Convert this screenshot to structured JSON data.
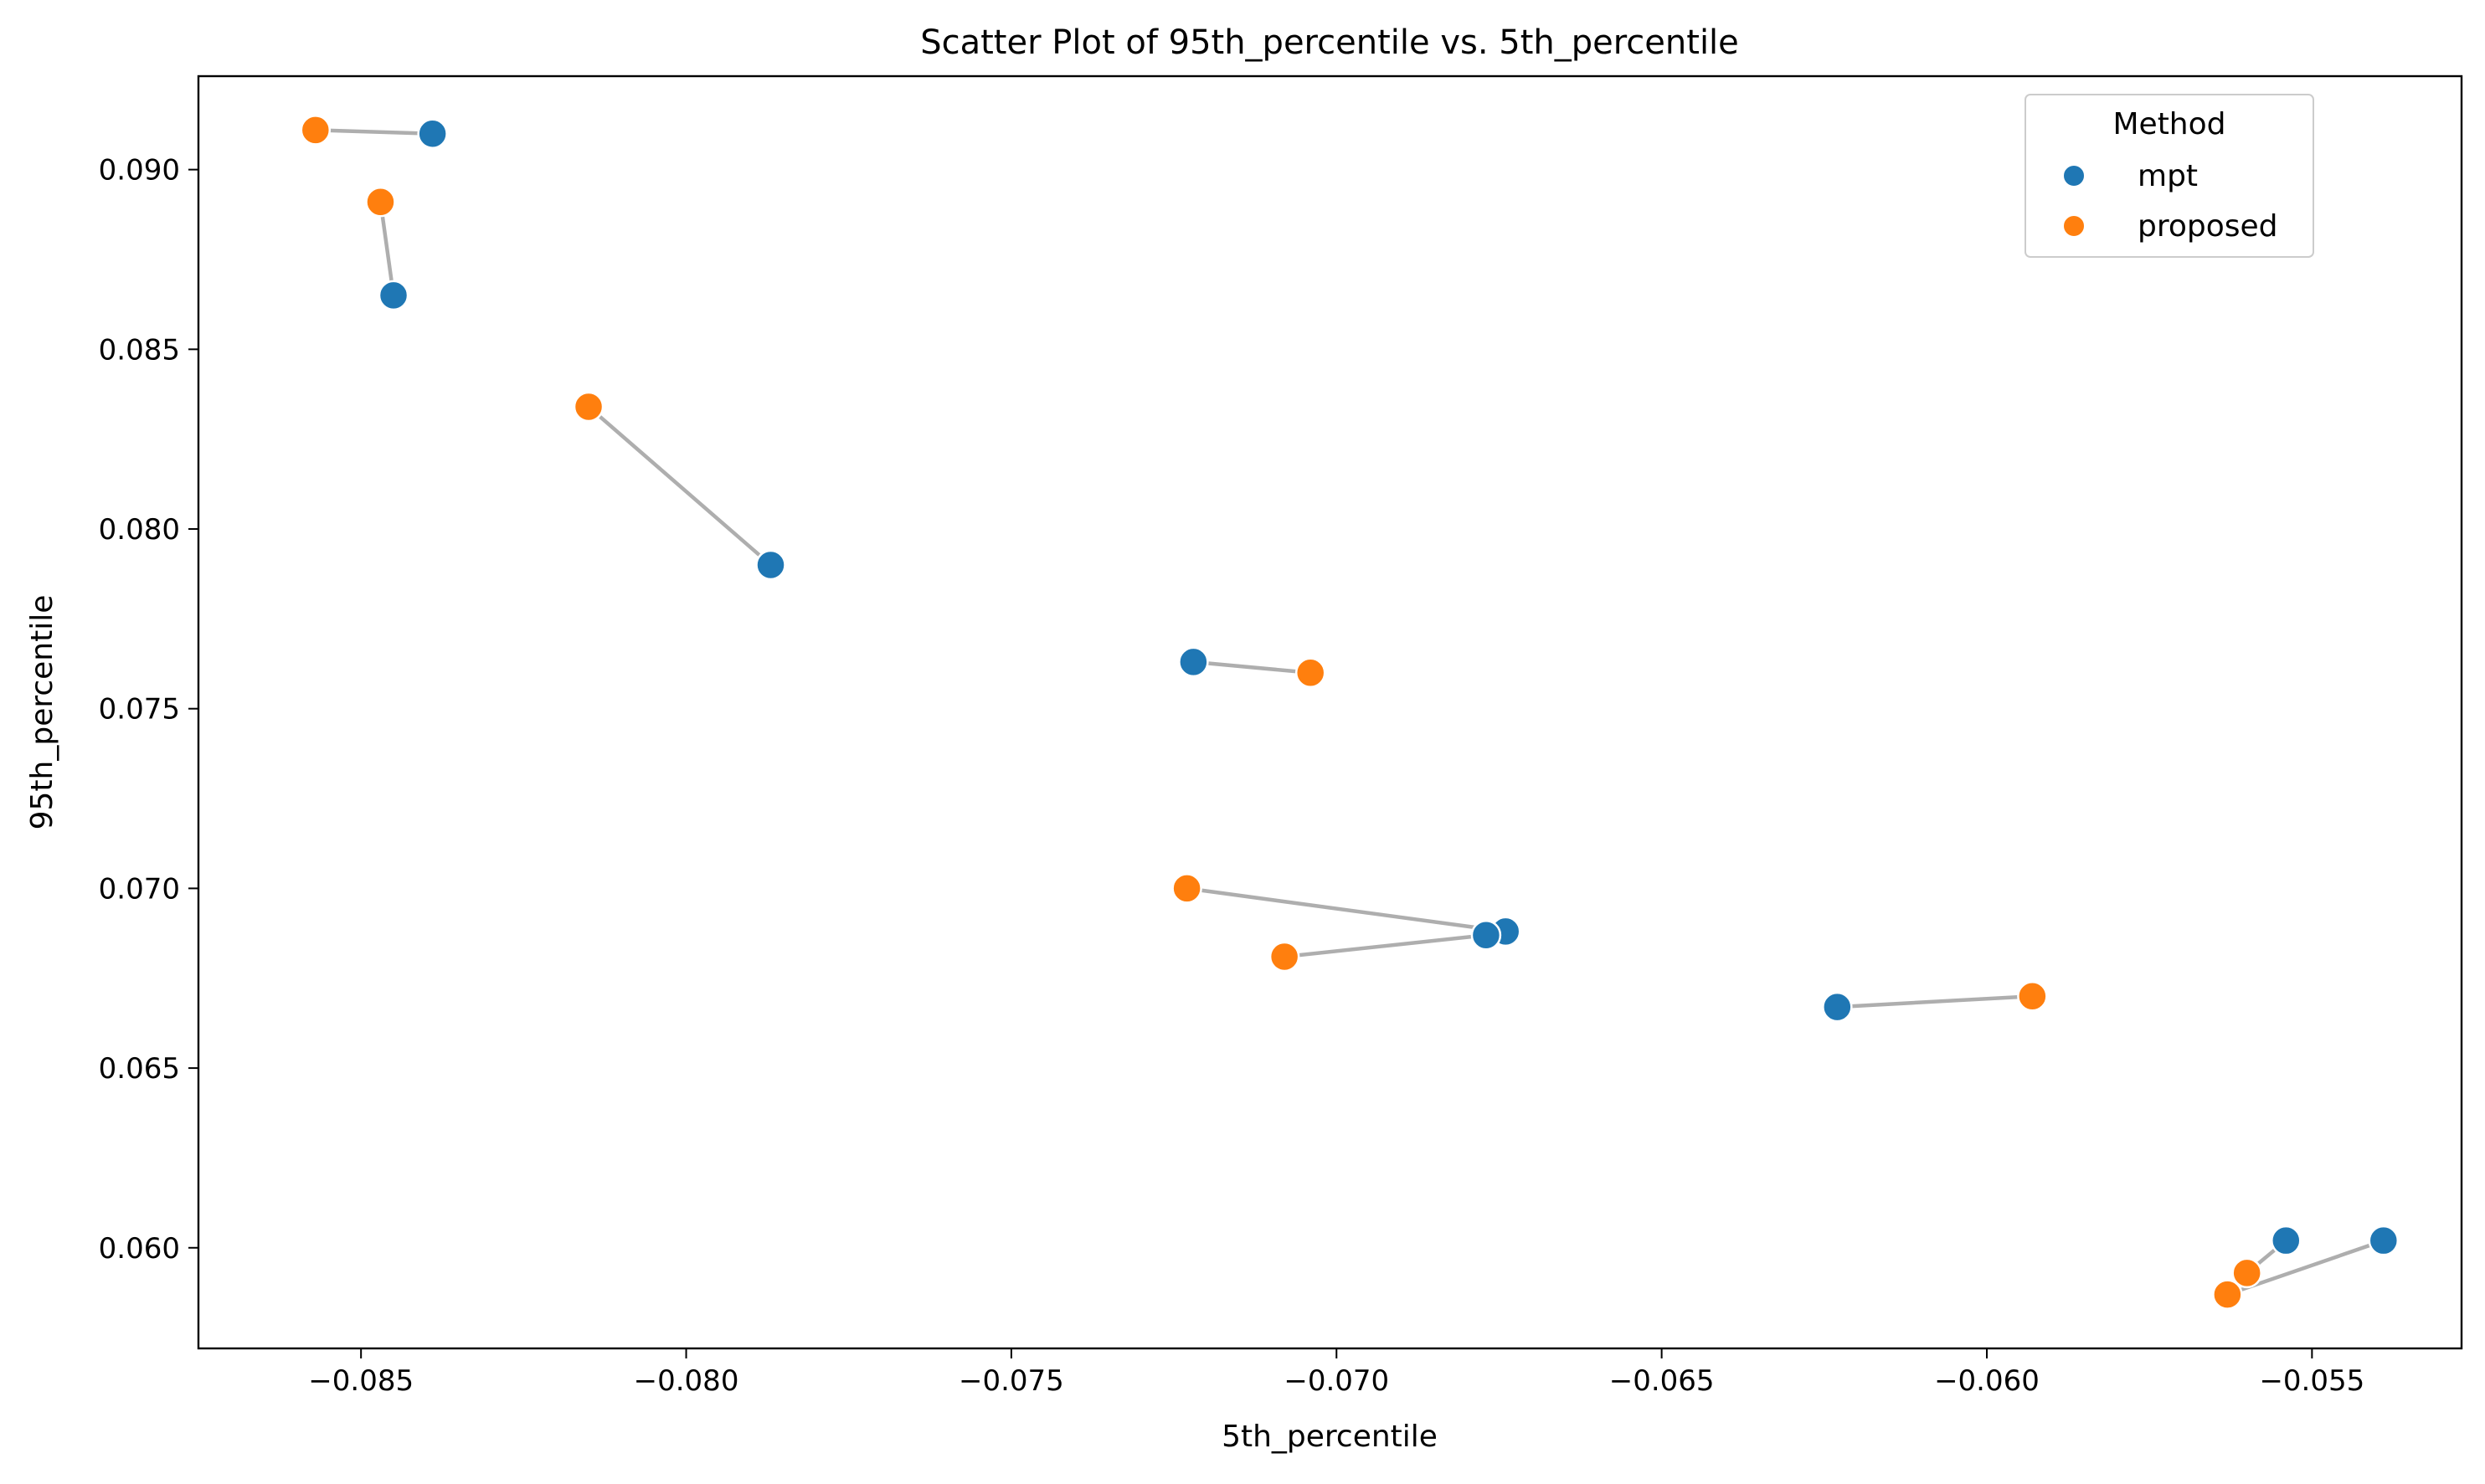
{
  "chart_data": {
    "type": "scatter",
    "title": "Scatter Plot of 95th_percentile vs. 5th_percentile",
    "xlabel": "5th_percentile",
    "ylabel": "95th_percentile",
    "xlim": [
      -0.0875,
      -0.0527
    ],
    "ylim": [
      0.0572,
      0.0926
    ],
    "x_ticks": [
      -0.085,
      -0.08,
      -0.075,
      -0.07,
      -0.065,
      -0.06,
      -0.055
    ],
    "x_tick_labels": [
      "−0.085",
      "−0.080",
      "−0.075",
      "−0.070",
      "−0.065",
      "−0.060",
      "−0.055"
    ],
    "y_ticks": [
      0.06,
      0.065,
      0.07,
      0.075,
      0.08,
      0.085,
      0.09
    ],
    "y_tick_labels": [
      "0.060",
      "0.065",
      "0.070",
      "0.075",
      "0.080",
      "0.085",
      "0.090"
    ],
    "grid": false,
    "legend": {
      "title": "Method",
      "placement": "top-right",
      "entries": [
        {
          "name": "mpt",
          "color": "#1f77b4"
        },
        {
          "name": "proposed",
          "color": "#ff7f0e"
        }
      ]
    },
    "series": [
      {
        "name": "mpt",
        "color": "#1f77b4",
        "points": [
          {
            "x": -0.0839,
            "y": 0.091
          },
          {
            "x": -0.0845,
            "y": 0.0865
          },
          {
            "x": -0.0787,
            "y": 0.079
          },
          {
            "x": -0.0722,
            "y": 0.0763
          },
          {
            "x": -0.0674,
            "y": 0.0688
          },
          {
            "x": -0.0677,
            "y": 0.0687
          },
          {
            "x": -0.0623,
            "y": 0.0667
          },
          {
            "x": -0.0554,
            "y": 0.0602
          },
          {
            "x": -0.0539,
            "y": 0.0602
          }
        ]
      },
      {
        "name": "proposed",
        "color": "#ff7f0e",
        "points": [
          {
            "x": -0.0857,
            "y": 0.0911
          },
          {
            "x": -0.0847,
            "y": 0.0891
          },
          {
            "x": -0.0815,
            "y": 0.0834
          },
          {
            "x": -0.0704,
            "y": 0.076
          },
          {
            "x": -0.0723,
            "y": 0.07
          },
          {
            "x": -0.0708,
            "y": 0.0681
          },
          {
            "x": -0.0593,
            "y": 0.067
          },
          {
            "x": -0.056,
            "y": 0.0593
          },
          {
            "x": -0.0563,
            "y": 0.0587
          }
        ]
      }
    ],
    "pair_lines": {
      "color": "#a0a0a0",
      "pairs": [
        [
          {
            "x": -0.0839,
            "y": 0.091
          },
          {
            "x": -0.0857,
            "y": 0.0911
          }
        ],
        [
          {
            "x": -0.0845,
            "y": 0.0865
          },
          {
            "x": -0.0847,
            "y": 0.0891
          }
        ],
        [
          {
            "x": -0.0787,
            "y": 0.079
          },
          {
            "x": -0.0815,
            "y": 0.0834
          }
        ],
        [
          {
            "x": -0.0722,
            "y": 0.0763
          },
          {
            "x": -0.0704,
            "y": 0.076
          }
        ],
        [
          {
            "x": -0.0674,
            "y": 0.0688
          },
          {
            "x": -0.0723,
            "y": 0.07
          }
        ],
        [
          {
            "x": -0.0677,
            "y": 0.0687
          },
          {
            "x": -0.0708,
            "y": 0.0681
          }
        ],
        [
          {
            "x": -0.0623,
            "y": 0.0667
          },
          {
            "x": -0.0593,
            "y": 0.067
          }
        ],
        [
          {
            "x": -0.0554,
            "y": 0.0602
          },
          {
            "x": -0.056,
            "y": 0.0593
          }
        ],
        [
          {
            "x": -0.0539,
            "y": 0.0602
          },
          {
            "x": -0.0563,
            "y": 0.0587
          }
        ]
      ]
    }
  }
}
